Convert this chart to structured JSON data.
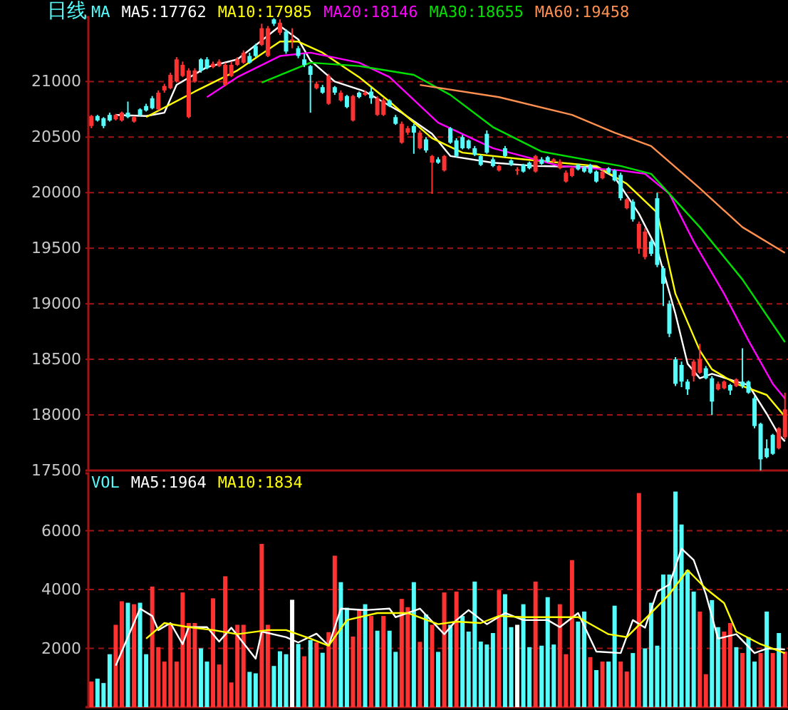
{
  "chart_data": [
    {
      "type": "candlestick",
      "title": "日线",
      "legend_title": "MA",
      "grid": "y",
      "tick_labels": "y",
      "categories": [
        null,
        null,
        null,
        null,
        null,
        null,
        null,
        null,
        null,
        null,
        null,
        null,
        null,
        null,
        null,
        null,
        null,
        null,
        null,
        null,
        null,
        null,
        null,
        null,
        null,
        null,
        null,
        null,
        null,
        null,
        null,
        null,
        null,
        null,
        null,
        null,
        null,
        null,
        null,
        null,
        null,
        null,
        null,
        null,
        null,
        null,
        null,
        null,
        null,
        null,
        null,
        null,
        null,
        null,
        null,
        null,
        null,
        null,
        null,
        null,
        null,
        null,
        null,
        null,
        null,
        null,
        null,
        null,
        null,
        null,
        null,
        null,
        null,
        null,
        null,
        null,
        null,
        null,
        null,
        null,
        null,
        null,
        null,
        null,
        null,
        null,
        null,
        null,
        null,
        null,
        null,
        null,
        null,
        null,
        null,
        null,
        null,
        null,
        null,
        null,
        null,
        null,
        null,
        null,
        null,
        null,
        null,
        null,
        null,
        null,
        null,
        null,
        null,
        null,
        null
      ],
      "ylim": [
        17500,
        21580
      ],
      "yticks": [
        17500,
        18000,
        18500,
        19000,
        19500,
        20000,
        20500,
        21000
      ],
      "ohlc": [
        [
          20600,
          20700,
          20580,
          20690
        ],
        [
          20690,
          20700,
          20640,
          20650
        ],
        [
          20670,
          20680,
          20580,
          20600
        ],
        [
          20700,
          20720,
          20640,
          20650
        ],
        [
          20660,
          20710,
          20650,
          20700
        ],
        [
          20650,
          20730,
          20640,
          20720
        ],
        [
          20720,
          20820,
          20670,
          20680
        ],
        [
          20640,
          20690,
          20630,
          20680
        ],
        [
          20750,
          20760,
          20690,
          20700
        ],
        [
          20780,
          20800,
          20730,
          20740
        ],
        [
          20850,
          20870,
          20750,
          20760
        ],
        [
          20750,
          20920,
          20740,
          20900
        ],
        [
          20920,
          20980,
          20900,
          20960
        ],
        [
          20940,
          21080,
          20930,
          21060
        ],
        [
          21000,
          21220,
          20990,
          21200
        ],
        [
          21050,
          21180,
          21040,
          21150
        ],
        [
          20680,
          21120,
          20670,
          21100
        ],
        [
          21000,
          21120,
          20990,
          21100
        ],
        [
          21200,
          21210,
          21080,
          21100
        ],
        [
          21200,
          21220,
          21110,
          21120
        ],
        [
          21130,
          21180,
          21120,
          21160
        ],
        [
          21140,
          21200,
          21130,
          21180
        ],
        [
          20970,
          21170,
          20960,
          21150
        ],
        [
          21050,
          21180,
          21040,
          21150
        ],
        [
          21150,
          21220,
          21140,
          21200
        ],
        [
          21170,
          21280,
          21160,
          21260
        ],
        [
          21230,
          21260,
          21160,
          21170
        ],
        [
          21320,
          21340,
          21220,
          21230
        ],
        [
          21330,
          21520,
          21320,
          21480
        ],
        [
          21230,
          21500,
          21220,
          21480
        ],
        [
          21560,
          21570,
          21500,
          21520
        ],
        [
          21440,
          21560,
          21420,
          21530
        ],
        [
          21450,
          21470,
          21250,
          21270
        ],
        [
          21370,
          21480,
          21300,
          21380
        ],
        [
          21300,
          21320,
          21210,
          21230
        ],
        [
          21200,
          21250,
          21130,
          21150
        ],
        [
          21140,
          21150,
          20720,
          21060
        ],
        [
          20940,
          21000,
          20930,
          20980
        ],
        [
          20950,
          20970,
          20890,
          20900
        ],
        [
          20800,
          21070,
          20790,
          21050
        ],
        [
          20950,
          20960,
          20880,
          20900
        ],
        [
          20830,
          20920,
          20820,
          20900
        ],
        [
          20870,
          20880,
          20760,
          20770
        ],
        [
          20650,
          20880,
          20640,
          20870
        ],
        [
          20900,
          20910,
          20850,
          20860
        ],
        [
          20880,
          20920,
          20870,
          20900
        ],
        [
          20910,
          20950,
          20800,
          20850
        ],
        [
          20700,
          20870,
          20690,
          20850
        ],
        [
          20700,
          20850,
          20690,
          20830
        ],
        [
          20830,
          20840,
          20770,
          20780
        ],
        [
          20680,
          20700,
          20610,
          20620
        ],
        [
          20450,
          20640,
          20440,
          20620
        ],
        [
          20540,
          20600,
          20520,
          20580
        ],
        [
          20600,
          20620,
          20350,
          20540
        ],
        [
          20400,
          20560,
          20390,
          20540
        ],
        [
          20480,
          20500,
          20360,
          20380
        ],
        [
          20270,
          20340,
          19990,
          20330
        ],
        [
          20300,
          20320,
          20260,
          20270
        ],
        [
          20200,
          20340,
          20190,
          20330
        ],
        [
          20580,
          20590,
          20440,
          20450
        ],
        [
          20470,
          20490,
          20320,
          20330
        ],
        [
          20500,
          20520,
          20390,
          20400
        ],
        [
          20470,
          20480,
          20390,
          20400
        ],
        [
          20400,
          20420,
          20330,
          20340
        ],
        [
          20330,
          20340,
          20240,
          20250
        ],
        [
          20530,
          20560,
          20350,
          20360
        ],
        [
          20300,
          20320,
          20230,
          20240
        ],
        [
          20200,
          20250,
          20190,
          20240
        ],
        [
          20400,
          20420,
          20320,
          20330
        ],
        [
          20290,
          20300,
          20240,
          20250
        ],
        [
          20200,
          20230,
          20160,
          20210
        ],
        [
          20250,
          20260,
          20180,
          20190
        ],
        [
          20270,
          20280,
          20210,
          20220
        ],
        [
          20190,
          20340,
          20180,
          20330
        ],
        [
          20300,
          20320,
          20250,
          20260
        ],
        [
          20320,
          20330,
          20270,
          20280
        ],
        [
          20280,
          20310,
          20270,
          20300
        ],
        [
          20220,
          20300,
          20210,
          20280
        ],
        [
          20100,
          20200,
          20090,
          20180
        ],
        [
          20150,
          20230,
          20140,
          20220
        ],
        [
          20250,
          20260,
          20200,
          20210
        ],
        [
          20230,
          20240,
          20180,
          20190
        ],
        [
          20250,
          20260,
          20170,
          20180
        ],
        [
          20190,
          20200,
          20090,
          20100
        ],
        [
          20130,
          20200,
          20120,
          20190
        ],
        [
          20220,
          20230,
          20170,
          20180
        ],
        [
          20200,
          20210,
          20100,
          20110
        ],
        [
          20160,
          20180,
          19930,
          19950
        ],
        [
          19860,
          19950,
          19850,
          19940
        ],
        [
          19920,
          19940,
          19740,
          19760
        ],
        [
          19500,
          19740,
          19450,
          19720
        ],
        [
          19420,
          19680,
          19400,
          19650
        ],
        [
          19560,
          19580,
          19430,
          19450
        ],
        [
          19950,
          20000,
          19330,
          19350
        ],
        [
          19320,
          19340,
          18980,
          19180
        ],
        [
          19000,
          19030,
          18700,
          18730
        ],
        [
          18500,
          18520,
          18260,
          18280
        ],
        [
          18450,
          18480,
          18250,
          18300
        ],
        [
          18300,
          18320,
          18180,
          18230
        ],
        [
          18350,
          18500,
          18300,
          18480
        ],
        [
          18380,
          18640,
          18370,
          18500
        ],
        [
          18420,
          18440,
          18320,
          18330
        ],
        [
          18330,
          18350,
          18000,
          18120
        ],
        [
          18230,
          18300,
          18220,
          18280
        ],
        [
          18240,
          18310,
          18230,
          18300
        ],
        [
          18270,
          18280,
          18180,
          18220
        ],
        [
          18260,
          18330,
          18250,
          18320
        ],
        [
          18300,
          18600,
          18240,
          18260
        ],
        [
          18300,
          18310,
          18190,
          18200
        ],
        [
          18150,
          18170,
          17880,
          17900
        ],
        [
          17920,
          17930,
          17500,
          17600
        ],
        [
          17700,
          17780,
          17610,
          17620
        ],
        [
          17820,
          17830,
          17640,
          17650
        ],
        [
          17700,
          17890,
          17690,
          17880
        ],
        [
          17800,
          18200,
          17780,
          18050
        ]
      ],
      "series": [
        {
          "type": "line",
          "name": "MA5:17762",
          "color": "#ffffff",
          "values": [
            null,
            null,
            null,
            null,
            20700,
            null,
            null,
            null,
            null,
            20690,
            null,
            null,
            20720,
            null,
            20970,
            null,
            null,
            null,
            null,
            21130,
            null,
            null,
            null,
            null,
            21200,
            null,
            null,
            null,
            21370,
            null,
            null,
            21500,
            null,
            null,
            21380,
            null,
            21190,
            null,
            null,
            null,
            21000,
            null,
            null,
            null,
            null,
            20910,
            null,
            null,
            null,
            null,
            null,
            20720,
            null,
            null,
            null,
            null,
            20530,
            null,
            null,
            20330,
            null,
            null,
            null,
            null,
            null,
            null,
            20270,
            null,
            null,
            null,
            null,
            null,
            null,
            20240,
            null,
            null,
            null,
            null,
            null,
            null,
            null,
            null,
            null,
            20230,
            null,
            null,
            20140,
            null,
            null,
            null,
            19810,
            null,
            null,
            19490,
            null,
            null,
            18910,
            null,
            18460,
            null,
            18330,
            null,
            18370,
            null,
            null,
            null,
            18300,
            null,
            18270,
            null,
            null,
            18010,
            null,
            17820,
            17762
          ]
        },
        {
          "type": "line",
          "name": "MA10:17985",
          "color": "#ffff00",
          "values": [
            null,
            null,
            null,
            null,
            null,
            null,
            null,
            null,
            null,
            20680,
            null,
            null,
            null,
            null,
            null,
            null,
            null,
            20910,
            null,
            null,
            null,
            null,
            null,
            null,
            21100,
            null,
            null,
            null,
            null,
            null,
            null,
            21360,
            null,
            null,
            21360,
            null,
            null,
            null,
            21260,
            null,
            null,
            null,
            null,
            null,
            21040,
            null,
            null,
            null,
            null,
            20820,
            null,
            null,
            null,
            null,
            null,
            null,
            20490,
            null,
            null,
            null,
            null,
            20360,
            null,
            null,
            null,
            null,
            null,
            null,
            null,
            null,
            null,
            20300,
            null,
            null,
            null,
            null,
            null,
            null,
            null,
            null,
            null,
            null,
            null,
            20240,
            null,
            null,
            null,
            null,
            20080,
            null,
            null,
            null,
            null,
            19820,
            null,
            null,
            19090,
            null,
            null,
            null,
            18580,
            null,
            18410,
            null,
            null,
            null,
            18280,
            null,
            null,
            null,
            null,
            18180,
            null,
            null,
            17985
          ]
        },
        {
          "type": "line",
          "name": "MA20:18146",
          "color": "#ff00ff",
          "values": [
            null,
            null,
            null,
            null,
            null,
            null,
            null,
            null,
            null,
            null,
            null,
            null,
            null,
            null,
            null,
            null,
            null,
            null,
            null,
            20860,
            null,
            null,
            null,
            null,
            21040,
            null,
            null,
            null,
            null,
            null,
            null,
            21230,
            null,
            null,
            null,
            null,
            21260,
            null,
            null,
            null,
            null,
            null,
            null,
            null,
            21170,
            null,
            null,
            null,
            null,
            21040,
            null,
            null,
            null,
            null,
            null,
            null,
            null,
            20630,
            null,
            null,
            null,
            null,
            null,
            null,
            null,
            null,
            20400,
            null,
            null,
            null,
            null,
            null,
            null,
            null,
            null,
            null,
            null,
            20240,
            null,
            null,
            null,
            null,
            null,
            null,
            null,
            null,
            null,
            20200,
            null,
            null,
            null,
            20170,
            null,
            null,
            null,
            19990,
            null,
            null,
            null,
            19560,
            null,
            null,
            null,
            null,
            19090,
            null,
            null,
            null,
            18670,
            null,
            null,
            null,
            18280,
            null,
            18146
          ]
        },
        {
          "type": "line",
          "name": "MA30:18655",
          "color": "#00e000",
          "values": [
            null,
            null,
            null,
            null,
            null,
            null,
            null,
            null,
            null,
            null,
            null,
            null,
            null,
            null,
            null,
            null,
            null,
            null,
            null,
            null,
            null,
            null,
            null,
            null,
            null,
            null,
            null,
            null,
            20990,
            null,
            null,
            null,
            null,
            null,
            null,
            null,
            21170,
            null,
            null,
            null,
            null,
            null,
            null,
            null,
            21140,
            null,
            null,
            null,
            null,
            null,
            null,
            null,
            null,
            21060,
            null,
            null,
            null,
            null,
            null,
            20880,
            null,
            null,
            null,
            null,
            null,
            null,
            20590,
            null,
            null,
            null,
            null,
            null,
            null,
            null,
            20370,
            null,
            null,
            null,
            null,
            null,
            null,
            null,
            null,
            null,
            null,
            null,
            null,
            20240,
            null,
            null,
            null,
            null,
            20170,
            null,
            null,
            19990,
            null,
            null,
            null,
            null,
            19690,
            null,
            null,
            null,
            null,
            null,
            null,
            19220,
            null,
            null,
            null,
            null,
            null,
            null,
            18655
          ]
        },
        {
          "type": "line",
          "name": "MA60:19458",
          "color": "#ff9050",
          "values": [
            null,
            null,
            null,
            null,
            null,
            null,
            null,
            null,
            null,
            null,
            null,
            null,
            null,
            null,
            null,
            null,
            null,
            null,
            null,
            null,
            null,
            null,
            null,
            null,
            null,
            null,
            null,
            null,
            null,
            null,
            null,
            null,
            null,
            null,
            null,
            null,
            null,
            null,
            null,
            null,
            null,
            null,
            null,
            null,
            null,
            null,
            null,
            null,
            null,
            null,
            null,
            null,
            null,
            null,
            20970,
            null,
            null,
            null,
            null,
            null,
            null,
            null,
            null,
            null,
            null,
            null,
            null,
            20860,
            null,
            null,
            null,
            null,
            null,
            null,
            null,
            null,
            null,
            null,
            null,
            20700,
            null,
            null,
            null,
            null,
            null,
            null,
            20540,
            null,
            null,
            null,
            null,
            null,
            20420,
            null,
            null,
            null,
            null,
            null,
            null,
            null,
            20040,
            null,
            null,
            null,
            null,
            null,
            null,
            19690,
            null,
            null,
            null,
            null,
            null,
            null,
            19458
          ]
        }
      ]
    },
    {
      "type": "bar",
      "title": "VOL",
      "grid": "y",
      "tick_labels": "y",
      "categories": [
        null,
        null,
        null,
        null,
        null,
        null,
        null,
        null,
        null,
        null,
        null,
        null,
        null,
        null,
        null,
        null,
        null,
        null,
        null,
        null,
        null,
        null,
        null,
        null,
        null,
        null,
        null,
        null,
        null,
        null,
        null,
        null,
        null,
        null,
        null,
        null,
        null,
        null,
        null,
        null,
        null,
        null,
        null,
        null,
        null,
        null,
        null,
        null,
        null,
        null,
        null,
        null,
        null,
        null,
        null,
        null,
        null,
        null,
        null,
        null,
        null,
        null,
        null,
        null,
        null,
        null,
        null,
        null,
        null,
        null,
        null,
        null,
        null,
        null,
        null,
        null,
        null,
        null,
        null,
        null,
        null,
        null,
        null,
        null,
        null,
        null,
        null,
        null,
        null,
        null,
        null,
        null,
        null,
        null,
        null,
        null,
        null,
        null,
        null,
        null,
        null,
        null,
        null,
        null,
        null,
        null,
        null,
        null,
        null,
        null,
        null,
        null,
        null,
        null,
        null
      ],
      "ylim": [
        0,
        7950
      ],
      "yticks": [
        2000,
        4000,
        6000
      ],
      "series": [
        {
          "values": [
            870,
            970,
            820,
            1800,
            2800,
            3600,
            3550,
            3500,
            3550,
            1800,
            4100,
            2040,
            1550,
            2860,
            1550,
            3900,
            2860,
            2860,
            2000,
            1550,
            3700,
            1450,
            4450,
            840,
            2800,
            2800,
            1200,
            1150,
            5550,
            2800,
            1400,
            1900,
            1800,
            3650,
            2150,
            1730,
            2280,
            2200,
            1850,
            2550,
            5150,
            4250,
            3380,
            2400,
            3300,
            3500,
            3100,
            2600,
            3100,
            2600,
            1880,
            3680,
            3400,
            4250,
            2220,
            3150,
            2800,
            1880,
            3900,
            2800,
            3930,
            3100,
            2570,
            4270,
            2230,
            2130,
            2520,
            3980,
            3840,
            2720,
            2800,
            3500,
            2040,
            4270,
            2090,
            3740,
            2130,
            3500,
            1800,
            5000,
            2910,
            3250,
            1700,
            1260,
            1550,
            1550,
            3450,
            1550,
            1210,
            1840,
            7280,
            2000,
            3550,
            2090,
            4510,
            4510,
            7330,
            6210,
            4660,
            3930,
            3250,
            1120,
            3640,
            2720,
            2570,
            2860,
            2040,
            1840,
            2380,
            1550,
            1840,
            3250,
            1840,
            2520,
            1890
          ],
          "colors": [
            "#ff3232",
            "#54fcfc",
            "#54fcfc",
            "#54fcfc",
            "#ff3232",
            "#ff3232",
            "#54fcfc",
            "#ff3232",
            "#54fcfc",
            "#54fcfc",
            "#ff3232",
            "#ff3232",
            "#ff3232",
            "#ff3232",
            "#ff3232",
            "#ff3232",
            "#ff3232",
            "#ff3232",
            "#54fcfc",
            "#54fcfc",
            "#ff3232",
            "#ff3232",
            "#ff3232",
            "#ff3232",
            "#ff3232",
            "#ff3232",
            "#54fcfc",
            "#54fcfc",
            "#ff3232",
            "#ff3232",
            "#54fcfc",
            "#54fcfc",
            "#54fcfc",
            "#ffffff",
            "#54fcfc",
            "#ff3232",
            "#54fcfc",
            "#ff3232",
            "#54fcfc",
            "#ff3232",
            "#ff3232",
            "#54fcfc",
            "#54fcfc",
            "#ff3232",
            "#ff3232",
            "#54fcfc",
            "#ff3232",
            "#54fcfc",
            "#ff3232",
            "#54fcfc",
            "#54fcfc",
            "#ff3232",
            "#ff3232",
            "#54fcfc",
            "#ff3232",
            "#54fcfc",
            "#ff3232",
            "#54fcfc",
            "#ff3232",
            "#54fcfc",
            "#ff3232",
            "#54fcfc",
            "#54fcfc",
            "#54fcfc",
            "#54fcfc",
            "#54fcfc",
            "#54fcfc",
            "#ff3232",
            "#54fcfc",
            "#54fcfc",
            "#ffffff",
            "#54fcfc",
            "#54fcfc",
            "#ff3232",
            "#54fcfc",
            "#54fcfc",
            "#54fcfc",
            "#ff3232",
            "#ff3232",
            "#ff3232",
            "#54fcfc",
            "#54fcfc",
            "#ff3232",
            "#54fcfc",
            "#ff3232",
            "#54fcfc",
            "#54fcfc",
            "#ff3232",
            "#ff3232",
            "#54fcfc",
            "#ff3232",
            "#54fcfc",
            "#54fcfc",
            "#54fcfc",
            "#54fcfc",
            "#54fcfc",
            "#54fcfc",
            "#54fcfc",
            "#54fcfc",
            "#54fcfc",
            "#ff3232",
            "#ff3232",
            "#54fcfc",
            "#54fcfc",
            "#ff3232",
            "#ff3232",
            "#54fcfc",
            "#ff3232",
            "#54fcfc",
            "#54fcfc",
            "#ff3232",
            "#54fcfc",
            "#ff3232",
            "#54fcfc",
            "#ff3232"
          ]
        },
        {
          "type": "line",
          "name": "MA5:1964",
          "color": "#ffffff",
          "values": [
            null,
            null,
            null,
            null,
            1410,
            null,
            null,
            null,
            3350,
            null,
            3100,
            2620,
            null,
            2860,
            null,
            2140,
            2720,
            null,
            null,
            2720,
            null,
            2230,
            null,
            2700,
            null,
            null,
            null,
            1650,
            2570,
            null,
            null,
            null,
            2380,
            null,
            2200,
            null,
            null,
            2500,
            null,
            2090,
            null,
            3350,
            null,
            null,
            null,
            3300,
            null,
            null,
            null,
            3350,
            3060,
            null,
            null,
            null,
            3350,
            null,
            null,
            null,
            2480,
            null,
            2960,
            null,
            3300,
            null,
            null,
            2820,
            null,
            null,
            3200,
            null,
            null,
            2960,
            null,
            null,
            null,
            2960,
            null,
            2720,
            null,
            null,
            3200,
            null,
            null,
            1890,
            null,
            null,
            null,
            1840,
            null,
            2960,
            null,
            2700,
            null,
            3930,
            null,
            4170,
            null,
            5390,
            null,
            5000,
            null,
            3840,
            null,
            2330,
            null,
            null,
            2480,
            null,
            null,
            1840,
            null,
            1990,
            null,
            null,
            1964
          ]
        },
        {
          "type": "line",
          "name": "MA10:1834",
          "color": "#ffff00",
          "values": [
            null,
            null,
            null,
            null,
            null,
            null,
            null,
            null,
            null,
            2330,
            null,
            null,
            2860,
            null,
            null,
            null,
            2720,
            null,
            null,
            null,
            2620,
            null,
            null,
            null,
            2480,
            null,
            null,
            null,
            null,
            2620,
            null,
            null,
            2620,
            null,
            null,
            null,
            2330,
            null,
            null,
            2090,
            null,
            null,
            2960,
            null,
            null,
            null,
            null,
            3200,
            null,
            null,
            null,
            null,
            3200,
            null,
            null,
            null,
            null,
            2820,
            null,
            null,
            2910,
            null,
            null,
            null,
            2860,
            null,
            null,
            3100,
            null,
            null,
            null,
            3060,
            null,
            null,
            null,
            3060,
            null,
            null,
            null,
            null,
            3060,
            null,
            null,
            null,
            null,
            2480,
            null,
            null,
            2380,
            null,
            null,
            null,
            3200,
            null,
            null,
            3840,
            null,
            null,
            4660,
            null,
            null,
            4030,
            null,
            null,
            3540,
            null,
            2570,
            null,
            null,
            null,
            2140,
            null,
            1990,
            null,
            1834
          ]
        }
      ]
    }
  ]
}
